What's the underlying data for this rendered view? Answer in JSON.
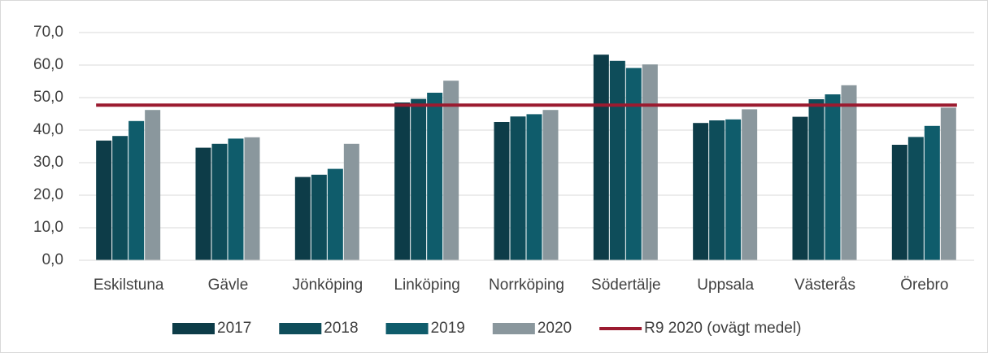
{
  "chart_data": {
    "type": "bar",
    "categories": [
      "Eskilstuna",
      "Gävle",
      "Jönköping",
      "Linköping",
      "Norrköping",
      "Södertälje",
      "Uppsala",
      "Västerås",
      "Örebro"
    ],
    "series": [
      {
        "name": "2017",
        "color": "#0d3c48",
        "values": [
          36.8,
          34.6,
          25.6,
          48.5,
          42.5,
          63.2,
          42.2,
          44.1,
          35.5
        ]
      },
      {
        "name": "2018",
        "color": "#0e4d5a",
        "values": [
          38.2,
          35.8,
          26.3,
          49.6,
          44.2,
          61.3,
          43.0,
          49.5,
          37.9
        ]
      },
      {
        "name": "2019",
        "color": "#0f5c6b",
        "values": [
          42.8,
          37.4,
          28.1,
          51.5,
          44.9,
          59.1,
          43.3,
          51.0,
          41.3
        ]
      },
      {
        "name": "2020",
        "color": "#8a979d",
        "values": [
          46.2,
          37.8,
          35.8,
          55.2,
          46.2,
          60.2,
          46.4,
          53.8,
          46.9
        ]
      },
      {
        "name": "R9 2020 (ovägt medel)",
        "color": "#9b1b30",
        "type": "line",
        "values": [
          47.7,
          47.7,
          47.7,
          47.7,
          47.7,
          47.7,
          47.7,
          47.7,
          47.7
        ]
      }
    ],
    "ylim": [
      0,
      70
    ],
    "yticks": [
      {
        "value": 0,
        "label": "0,0"
      },
      {
        "value": 10,
        "label": "10,0"
      },
      {
        "value": 20,
        "label": "20,0"
      },
      {
        "value": 30,
        "label": "30,0"
      },
      {
        "value": 40,
        "label": "40,0"
      },
      {
        "value": 50,
        "label": "50,0"
      },
      {
        "value": 60,
        "label": "60,0"
      },
      {
        "value": 70,
        "label": "70,0"
      }
    ],
    "grid": true,
    "legend": "bottom"
  }
}
